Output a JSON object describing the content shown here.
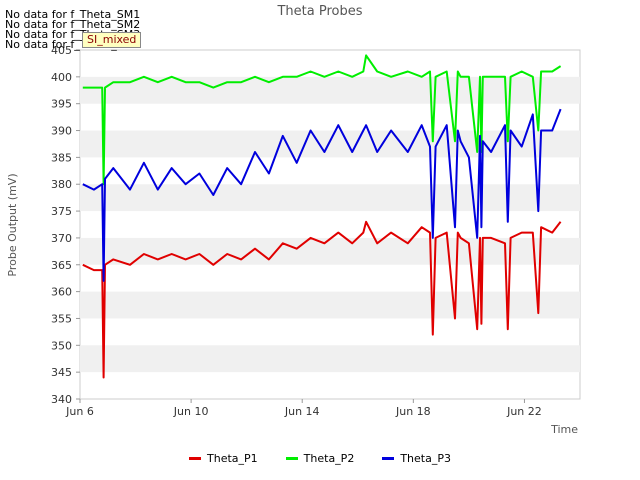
{
  "no_data_messages": [
    "No data for f_Theta_SM1",
    "No data for f_Theta_SM2",
    "No data for f_Theta_SM3",
    "No data for f_Theta_SM4"
  ],
  "badge": "SI_mixed",
  "chart_data": {
    "type": "line",
    "title": "Theta Probes",
    "xlabel": "Time",
    "ylabel": "Probe Output (mV)",
    "xlim": [
      "Jun 6",
      "Jun 24"
    ],
    "ylim": [
      340,
      405
    ],
    "x_ticks": [
      "Jun 6",
      "Jun 10",
      "Jun 14",
      "Jun 18",
      "Jun 22"
    ],
    "y_ticks": [
      340,
      345,
      350,
      355,
      360,
      365,
      370,
      375,
      380,
      385,
      390,
      395,
      400,
      405
    ],
    "grid": "horizontal bands",
    "legend_position": "bottom",
    "series": [
      {
        "name": "Theta_P1",
        "color": "#e00000",
        "x": [
          6.1,
          6.5,
          6.8,
          6.85,
          6.9,
          7.2,
          7.8,
          8.3,
          8.8,
          9.3,
          9.8,
          10.3,
          10.8,
          11.3,
          11.8,
          12.3,
          12.8,
          13.3,
          13.8,
          14.3,
          14.8,
          15.3,
          15.8,
          16.2,
          16.3,
          16.7,
          17.2,
          17.8,
          18.3,
          18.6,
          18.7,
          18.8,
          19.2,
          19.5,
          19.6,
          19.7,
          20.0,
          20.3,
          20.4,
          20.45,
          20.5,
          20.8,
          21.3,
          21.4,
          21.5,
          21.9,
          22.3,
          22.5,
          22.6,
          23.0,
          23.3
        ],
        "y": [
          365,
          364,
          364,
          344,
          365,
          366,
          365,
          367,
          366,
          367,
          366,
          367,
          365,
          367,
          366,
          368,
          366,
          369,
          368,
          370,
          369,
          371,
          369,
          371,
          373,
          369,
          371,
          369,
          372,
          371,
          352,
          370,
          371,
          355,
          371,
          370,
          369,
          353,
          370,
          354,
          370,
          370,
          369,
          353,
          370,
          371,
          371,
          356,
          372,
          371,
          373
        ]
      },
      {
        "name": "Theta_P2",
        "color": "#00ee00",
        "x": [
          6.1,
          6.5,
          6.8,
          6.85,
          6.9,
          7.2,
          7.8,
          8.3,
          8.8,
          9.3,
          9.8,
          10.3,
          10.8,
          11.3,
          11.8,
          12.3,
          12.8,
          13.3,
          13.8,
          14.3,
          14.8,
          15.3,
          15.8,
          16.2,
          16.3,
          16.7,
          17.2,
          17.8,
          18.3,
          18.6,
          18.7,
          18.8,
          19.2,
          19.5,
          19.6,
          19.7,
          20.0,
          20.3,
          20.4,
          20.45,
          20.5,
          20.8,
          21.3,
          21.4,
          21.5,
          21.9,
          22.3,
          22.5,
          22.6,
          23.0,
          23.3
        ],
        "y": [
          398,
          398,
          398,
          380,
          398,
          399,
          399,
          400,
          399,
          400,
          399,
          399,
          398,
          399,
          399,
          400,
          399,
          400,
          400,
          401,
          400,
          401,
          400,
          401,
          404,
          401,
          400,
          401,
          400,
          401,
          388,
          400,
          401,
          388,
          401,
          400,
          400,
          386,
          400,
          386,
          400,
          400,
          400,
          388,
          400,
          401,
          400,
          390,
          401,
          401,
          402
        ]
      },
      {
        "name": "Theta_P3",
        "color": "#0000dd",
        "x": [
          6.1,
          6.5,
          6.8,
          6.85,
          6.9,
          7.2,
          7.8,
          8.3,
          8.8,
          9.3,
          9.8,
          10.3,
          10.8,
          11.3,
          11.8,
          12.3,
          12.8,
          13.3,
          13.8,
          14.3,
          14.8,
          15.3,
          15.8,
          16.2,
          16.3,
          16.7,
          17.2,
          17.8,
          18.3,
          18.6,
          18.7,
          18.8,
          19.2,
          19.5,
          19.6,
          19.7,
          20.0,
          20.3,
          20.4,
          20.45,
          20.5,
          20.8,
          21.3,
          21.4,
          21.5,
          21.9,
          22.3,
          22.5,
          22.6,
          23.0,
          23.3
        ],
        "y": [
          380,
          379,
          380,
          362,
          381,
          383,
          379,
          384,
          379,
          383,
          380,
          382,
          378,
          383,
          380,
          386,
          382,
          389,
          384,
          390,
          386,
          391,
          386,
          390,
          391,
          386,
          390,
          386,
          391,
          387,
          370,
          387,
          391,
          372,
          390,
          388,
          385,
          370,
          389,
          372,
          388,
          386,
          391,
          373,
          390,
          387,
          393,
          375,
          390,
          390,
          394
        ]
      }
    ]
  }
}
